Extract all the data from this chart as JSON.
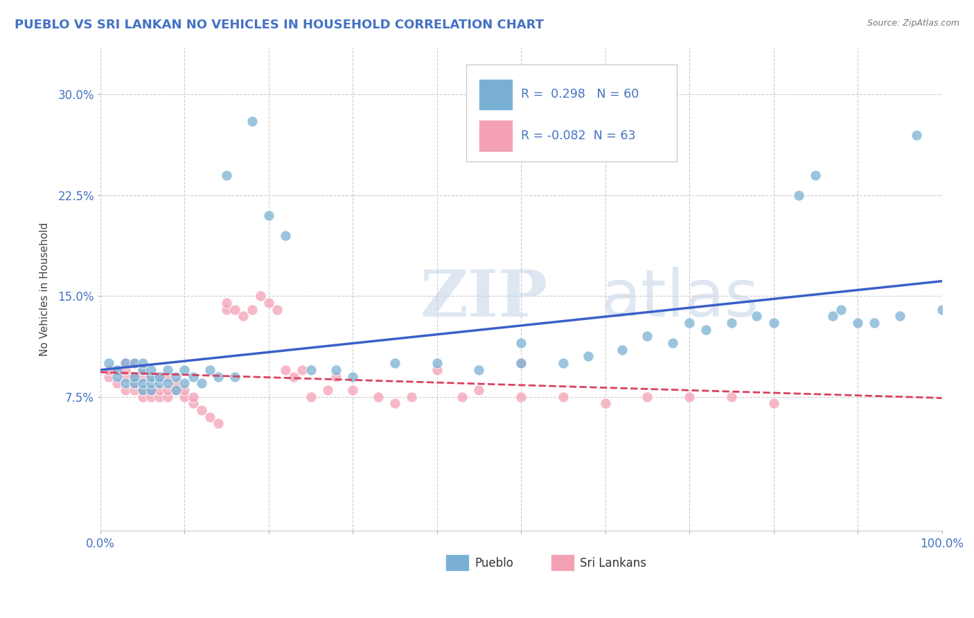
{
  "title": "PUEBLO VS SRI LANKAN NO VEHICLES IN HOUSEHOLD CORRELATION CHART",
  "source": "Source: ZipAtlas.com",
  "ylabel": "No Vehicles in Household",
  "xlim": [
    0.0,
    1.0
  ],
  "ylim": [
    -0.025,
    0.335
  ],
  "yticks": [
    0.075,
    0.15,
    0.225,
    0.3
  ],
  "ytick_labels": [
    "7.5%",
    "15.0%",
    "22.5%",
    "30.0%"
  ],
  "xtick_vals": [
    0.0,
    0.1,
    0.2,
    0.3,
    0.4,
    0.5,
    0.6,
    0.7,
    0.8,
    0.9,
    1.0
  ],
  "xtick_labels": [
    "0.0%",
    "",
    "",
    "",
    "",
    "",
    "",
    "",
    "",
    "",
    "100.0%"
  ],
  "pueblo_color": "#7ab0d4",
  "srilanka_color": "#f4a0b5",
  "pueblo_line_color": "#3a5fc8",
  "srilanka_line_color": "#d94060",
  "pueblo_R": 0.298,
  "pueblo_N": 60,
  "srilanka_R": -0.082,
  "srilanka_N": 63,
  "watermark_zip": "ZIP",
  "watermark_atlas": "atlas",
  "pueblo_x": [
    0.01,
    0.02,
    0.02,
    0.03,
    0.03,
    0.04,
    0.04,
    0.04,
    0.05,
    0.05,
    0.05,
    0.05,
    0.06,
    0.06,
    0.06,
    0.06,
    0.07,
    0.07,
    0.08,
    0.08,
    0.09,
    0.09,
    0.1,
    0.1,
    0.11,
    0.12,
    0.13,
    0.14,
    0.15,
    0.16,
    0.18,
    0.2,
    0.22,
    0.25,
    0.28,
    0.3,
    0.35,
    0.4,
    0.45,
    0.5,
    0.5,
    0.55,
    0.58,
    0.62,
    0.65,
    0.68,
    0.7,
    0.72,
    0.75,
    0.78,
    0.8,
    0.83,
    0.85,
    0.87,
    0.88,
    0.9,
    0.92,
    0.95,
    0.97,
    1.0
  ],
  "pueblo_y": [
    0.1,
    0.095,
    0.09,
    0.085,
    0.1,
    0.085,
    0.09,
    0.1,
    0.08,
    0.085,
    0.095,
    0.1,
    0.08,
    0.085,
    0.09,
    0.095,
    0.085,
    0.09,
    0.085,
    0.095,
    0.08,
    0.09,
    0.085,
    0.095,
    0.09,
    0.085,
    0.095,
    0.09,
    0.24,
    0.09,
    0.28,
    0.21,
    0.195,
    0.095,
    0.095,
    0.09,
    0.1,
    0.1,
    0.095,
    0.1,
    0.115,
    0.1,
    0.105,
    0.11,
    0.12,
    0.115,
    0.13,
    0.125,
    0.13,
    0.135,
    0.13,
    0.225,
    0.24,
    0.135,
    0.14,
    0.13,
    0.13,
    0.135,
    0.27,
    0.14
  ],
  "srilanka_x": [
    0.01,
    0.01,
    0.02,
    0.02,
    0.03,
    0.03,
    0.03,
    0.03,
    0.04,
    0.04,
    0.04,
    0.04,
    0.05,
    0.05,
    0.05,
    0.05,
    0.06,
    0.06,
    0.06,
    0.07,
    0.07,
    0.07,
    0.08,
    0.08,
    0.08,
    0.09,
    0.09,
    0.1,
    0.1,
    0.11,
    0.11,
    0.12,
    0.13,
    0.14,
    0.15,
    0.15,
    0.16,
    0.17,
    0.18,
    0.19,
    0.2,
    0.21,
    0.22,
    0.23,
    0.24,
    0.25,
    0.27,
    0.28,
    0.3,
    0.33,
    0.35,
    0.37,
    0.4,
    0.43,
    0.45,
    0.5,
    0.5,
    0.55,
    0.6,
    0.65,
    0.7,
    0.75,
    0.8
  ],
  "srilanka_y": [
    0.09,
    0.095,
    0.085,
    0.095,
    0.08,
    0.09,
    0.095,
    0.1,
    0.08,
    0.085,
    0.09,
    0.1,
    0.075,
    0.08,
    0.09,
    0.095,
    0.075,
    0.08,
    0.09,
    0.075,
    0.08,
    0.09,
    0.075,
    0.08,
    0.09,
    0.08,
    0.085,
    0.075,
    0.08,
    0.07,
    0.075,
    0.065,
    0.06,
    0.055,
    0.14,
    0.145,
    0.14,
    0.135,
    0.14,
    0.15,
    0.145,
    0.14,
    0.095,
    0.09,
    0.095,
    0.075,
    0.08,
    0.09,
    0.08,
    0.075,
    0.07,
    0.075,
    0.095,
    0.075,
    0.08,
    0.075,
    0.1,
    0.075,
    0.07,
    0.075,
    0.075,
    0.075,
    0.07
  ]
}
